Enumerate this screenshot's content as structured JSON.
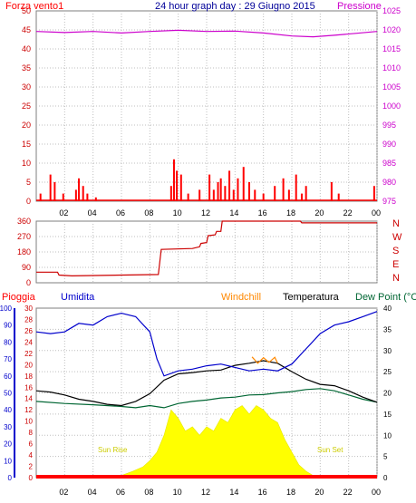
{
  "chart_data": [
    {
      "type": "bar",
      "title": "24 hour graph day : 29 Giugno 2015",
      "left_label": "Forza vento1",
      "right_label": "Pressione",
      "y_left_ticks": [
        "0",
        "5",
        "10",
        "15",
        "20",
        "25",
        "30",
        "35",
        "40",
        "45",
        "50"
      ],
      "y_right_ticks": [
        "975",
        "980",
        "985",
        "990",
        "995",
        "1000",
        "1005",
        "1010",
        "1015",
        "1020",
        "1025"
      ],
      "ylim_left": [
        0,
        50
      ],
      "ylim_right": [
        975,
        1025
      ],
      "x_ticks": [
        "02",
        "04",
        "06",
        "08",
        "10",
        "12",
        "14",
        "16",
        "18",
        "20",
        "22",
        "00"
      ],
      "wind_bars": [
        {
          "h": 0.3,
          "v": 2
        },
        {
          "h": 1.0,
          "v": 7
        },
        {
          "h": 1.3,
          "v": 5
        },
        {
          "h": 1.9,
          "v": 2
        },
        {
          "h": 2.8,
          "v": 3
        },
        {
          "h": 3.0,
          "v": 6
        },
        {
          "h": 3.3,
          "v": 4
        },
        {
          "h": 3.6,
          "v": 2
        },
        {
          "h": 4.2,
          "v": 1
        },
        {
          "h": 9.5,
          "v": 4
        },
        {
          "h": 9.7,
          "v": 11
        },
        {
          "h": 9.9,
          "v": 8
        },
        {
          "h": 10.2,
          "v": 7
        },
        {
          "h": 10.7,
          "v": 2
        },
        {
          "h": 11.5,
          "v": 3
        },
        {
          "h": 12.2,
          "v": 7
        },
        {
          "h": 12.5,
          "v": 3
        },
        {
          "h": 12.8,
          "v": 5
        },
        {
          "h": 13.0,
          "v": 6
        },
        {
          "h": 13.3,
          "v": 4
        },
        {
          "h": 13.6,
          "v": 8
        },
        {
          "h": 13.9,
          "v": 3
        },
        {
          "h": 14.2,
          "v": 6
        },
        {
          "h": 14.6,
          "v": 9
        },
        {
          "h": 15.0,
          "v": 5
        },
        {
          "h": 15.4,
          "v": 3
        },
        {
          "h": 16.0,
          "v": 2
        },
        {
          "h": 16.8,
          "v": 4
        },
        {
          "h": 17.4,
          "v": 6
        },
        {
          "h": 17.8,
          "v": 3
        },
        {
          "h": 18.3,
          "v": 7
        },
        {
          "h": 18.7,
          "v": 2
        },
        {
          "h": 19.0,
          "v": 4
        },
        {
          "h": 20.8,
          "v": 5
        },
        {
          "h": 21.3,
          "v": 2
        },
        {
          "h": 23.8,
          "v": 4
        }
      ],
      "pressure": [
        {
          "h": 0,
          "v": 1019.6
        },
        {
          "h": 2,
          "v": 1019.3
        },
        {
          "h": 4,
          "v": 1019.6
        },
        {
          "h": 6,
          "v": 1019.2
        },
        {
          "h": 8,
          "v": 1019.6
        },
        {
          "h": 10,
          "v": 1019.9
        },
        {
          "h": 12,
          "v": 1019.6
        },
        {
          "h": 14,
          "v": 1019.7
        },
        {
          "h": 16,
          "v": 1019.2
        },
        {
          "h": 18,
          "v": 1018.4
        },
        {
          "h": 19.5,
          "v": 1018.2
        },
        {
          "h": 21,
          "v": 1018.6
        },
        {
          "h": 22.5,
          "v": 1019.1
        },
        {
          "h": 24,
          "v": 1019.6
        }
      ]
    },
    {
      "type": "line",
      "y_left_ticks": [
        "0",
        "90",
        "180",
        "270",
        "360"
      ],
      "ylim": [
        0,
        360
      ],
      "compass": [
        "N",
        "W",
        "S",
        "E",
        "N"
      ],
      "direction": [
        {
          "h": 0,
          "v": 62
        },
        {
          "h": 1.5,
          "v": 62
        },
        {
          "h": 1.6,
          "v": 45
        },
        {
          "h": 2.5,
          "v": 40
        },
        {
          "h": 8.6,
          "v": 48
        },
        {
          "h": 8.8,
          "v": 195
        },
        {
          "h": 11,
          "v": 200
        },
        {
          "h": 11.5,
          "v": 210
        },
        {
          "h": 11.6,
          "v": 230
        },
        {
          "h": 12,
          "v": 235
        },
        {
          "h": 12.1,
          "v": 275
        },
        {
          "h": 12.6,
          "v": 280
        },
        {
          "h": 12.7,
          "v": 300
        },
        {
          "h": 13,
          "v": 300
        },
        {
          "h": 13.1,
          "v": 360
        },
        {
          "h": 18.6,
          "v": 360
        },
        {
          "h": 18.7,
          "v": 350
        },
        {
          "h": 24,
          "v": 350
        }
      ]
    },
    {
      "type": "line",
      "labels": {
        "rain": "Pioggia",
        "humidity": "Umidita",
        "windchill": "Windchill",
        "temperature": "Temperatura",
        "dewpoint": "Dew Point (°C"
      },
      "y_hum_ticks": [
        "0",
        "10",
        "20",
        "30",
        "40",
        "50",
        "60",
        "70",
        "80",
        "90",
        "100"
      ],
      "y_rain_ticks": [
        "0",
        "2",
        "4",
        "6",
        "8",
        "10",
        "12",
        "14",
        "16",
        "18",
        "20",
        "22",
        "24",
        "26",
        "28",
        "30"
      ],
      "y_temp_ticks": [
        "0",
        "5",
        "10",
        "15",
        "20",
        "25",
        "30",
        "35",
        "40"
      ],
      "ylim_temp": [
        0,
        40
      ],
      "ylim_humidity": [
        0,
        100
      ],
      "sunrise_label": "Sun Rise",
      "sunset_label": "Sun Set",
      "humidity": [
        {
          "h": 0,
          "v": 86
        },
        {
          "h": 1,
          "v": 85
        },
        {
          "h": 2,
          "v": 86
        },
        {
          "h": 3,
          "v": 91
        },
        {
          "h": 4,
          "v": 90
        },
        {
          "h": 5,
          "v": 95
        },
        {
          "h": 6,
          "v": 97
        },
        {
          "h": 7,
          "v": 95
        },
        {
          "h": 8,
          "v": 86
        },
        {
          "h": 8.5,
          "v": 70
        },
        {
          "h": 9,
          "v": 60
        },
        {
          "h": 10,
          "v": 63
        },
        {
          "h": 11,
          "v": 64
        },
        {
          "h": 12,
          "v": 66
        },
        {
          "h": 13,
          "v": 67
        },
        {
          "h": 14,
          "v": 65
        },
        {
          "h": 15,
          "v": 63
        },
        {
          "h": 16,
          "v": 64
        },
        {
          "h": 17,
          "v": 63
        },
        {
          "h": 18,
          "v": 67
        },
        {
          "h": 19,
          "v": 76
        },
        {
          "h": 20,
          "v": 85
        },
        {
          "h": 21,
          "v": 90
        },
        {
          "h": 22,
          "v": 92
        },
        {
          "h": 23,
          "v": 95
        },
        {
          "h": 24,
          "v": 98
        }
      ],
      "temperature": [
        {
          "h": 0,
          "v": 20.5
        },
        {
          "h": 1,
          "v": 20.2
        },
        {
          "h": 2,
          "v": 19.5
        },
        {
          "h": 3,
          "v": 18.5
        },
        {
          "h": 4,
          "v": 18.0
        },
        {
          "h": 5,
          "v": 17.3
        },
        {
          "h": 6,
          "v": 17.0
        },
        {
          "h": 7,
          "v": 18.0
        },
        {
          "h": 8,
          "v": 19.8
        },
        {
          "h": 9,
          "v": 23.0
        },
        {
          "h": 10,
          "v": 24.5
        },
        {
          "h": 11,
          "v": 24.8
        },
        {
          "h": 12,
          "v": 25.2
        },
        {
          "h": 13,
          "v": 25.4
        },
        {
          "h": 14,
          "v": 26.5
        },
        {
          "h": 15,
          "v": 27.0
        },
        {
          "h": 16,
          "v": 27.6
        },
        {
          "h": 17,
          "v": 27.0
        },
        {
          "h": 18,
          "v": 25.0
        },
        {
          "h": 19,
          "v": 23.2
        },
        {
          "h": 20,
          "v": 22.0
        },
        {
          "h": 21,
          "v": 21.7
        },
        {
          "h": 22,
          "v": 20.5
        },
        {
          "h": 23,
          "v": 19.0
        },
        {
          "h": 24,
          "v": 17.8
        }
      ],
      "windchill": [
        {
          "h": 15.2,
          "v": 28.5
        },
        {
          "h": 15.6,
          "v": 27.0
        },
        {
          "h": 16.0,
          "v": 28.3
        },
        {
          "h": 16.4,
          "v": 27.2
        },
        {
          "h": 16.8,
          "v": 28.4
        },
        {
          "h": 17.0,
          "v": 27.0
        }
      ],
      "dewpoint": [
        {
          "h": 0,
          "v": 18.0
        },
        {
          "h": 2,
          "v": 17.5
        },
        {
          "h": 4,
          "v": 17.2
        },
        {
          "h": 6,
          "v": 16.8
        },
        {
          "h": 7,
          "v": 16.5
        },
        {
          "h": 8,
          "v": 17.0
        },
        {
          "h": 9,
          "v": 16.5
        },
        {
          "h": 10,
          "v": 17.5
        },
        {
          "h": 11,
          "v": 18.0
        },
        {
          "h": 12,
          "v": 18.3
        },
        {
          "h": 13,
          "v": 18.8
        },
        {
          "h": 14,
          "v": 19.0
        },
        {
          "h": 15,
          "v": 19.5
        },
        {
          "h": 16,
          "v": 19.6
        },
        {
          "h": 17,
          "v": 20.0
        },
        {
          "h": 18,
          "v": 20.3
        },
        {
          "h": 19,
          "v": 20.8
        },
        {
          "h": 20,
          "v": 21.0
        },
        {
          "h": 21,
          "v": 20.5
        },
        {
          "h": 22,
          "v": 19.5
        },
        {
          "h": 23,
          "v": 18.5
        },
        {
          "h": 24,
          "v": 17.8
        }
      ],
      "solar": [
        {
          "h": 5.5,
          "v": 0
        },
        {
          "h": 6.0,
          "v": 0.5
        },
        {
          "h": 6.8,
          "v": 1.5
        },
        {
          "h": 7.5,
          "v": 2.5
        },
        {
          "h": 8.0,
          "v": 4
        },
        {
          "h": 8.5,
          "v": 6
        },
        {
          "h": 9.0,
          "v": 10
        },
        {
          "h": 9.5,
          "v": 16
        },
        {
          "h": 10.0,
          "v": 14
        },
        {
          "h": 10.5,
          "v": 11
        },
        {
          "h": 11.0,
          "v": 12
        },
        {
          "h": 11.5,
          "v": 10
        },
        {
          "h": 12.0,
          "v": 12
        },
        {
          "h": 12.5,
          "v": 11
        },
        {
          "h": 13.0,
          "v": 14
        },
        {
          "h": 13.5,
          "v": 13
        },
        {
          "h": 14.0,
          "v": 16
        },
        {
          "h": 14.5,
          "v": 17
        },
        {
          "h": 15.0,
          "v": 15
        },
        {
          "h": 15.5,
          "v": 17
        },
        {
          "h": 16.0,
          "v": 16
        },
        {
          "h": 16.5,
          "v": 14
        },
        {
          "h": 17.0,
          "v": 13
        },
        {
          "h": 17.5,
          "v": 9
        },
        {
          "h": 18.0,
          "v": 6
        },
        {
          "h": 18.5,
          "v": 3
        },
        {
          "h": 19.0,
          "v": 1.5
        },
        {
          "h": 19.5,
          "v": 0.5
        },
        {
          "h": 20.0,
          "v": 0
        }
      ],
      "rain": [
        {
          "h": 0,
          "v": 0
        },
        {
          "h": 24,
          "v": 0
        }
      ]
    }
  ],
  "colors": {
    "wind": "#ff0000",
    "pressure": "#cc00cc",
    "direction": "#cc0000",
    "humidity": "#0000cc",
    "temperature": "#000000",
    "dewpoint": "#006633",
    "windchill": "#ff8800",
    "solar": "#ffff00",
    "rain": "#ff0000",
    "axis_left": "#cc0000",
    "title": "#000099",
    "grid": "#bfbfbf"
  }
}
